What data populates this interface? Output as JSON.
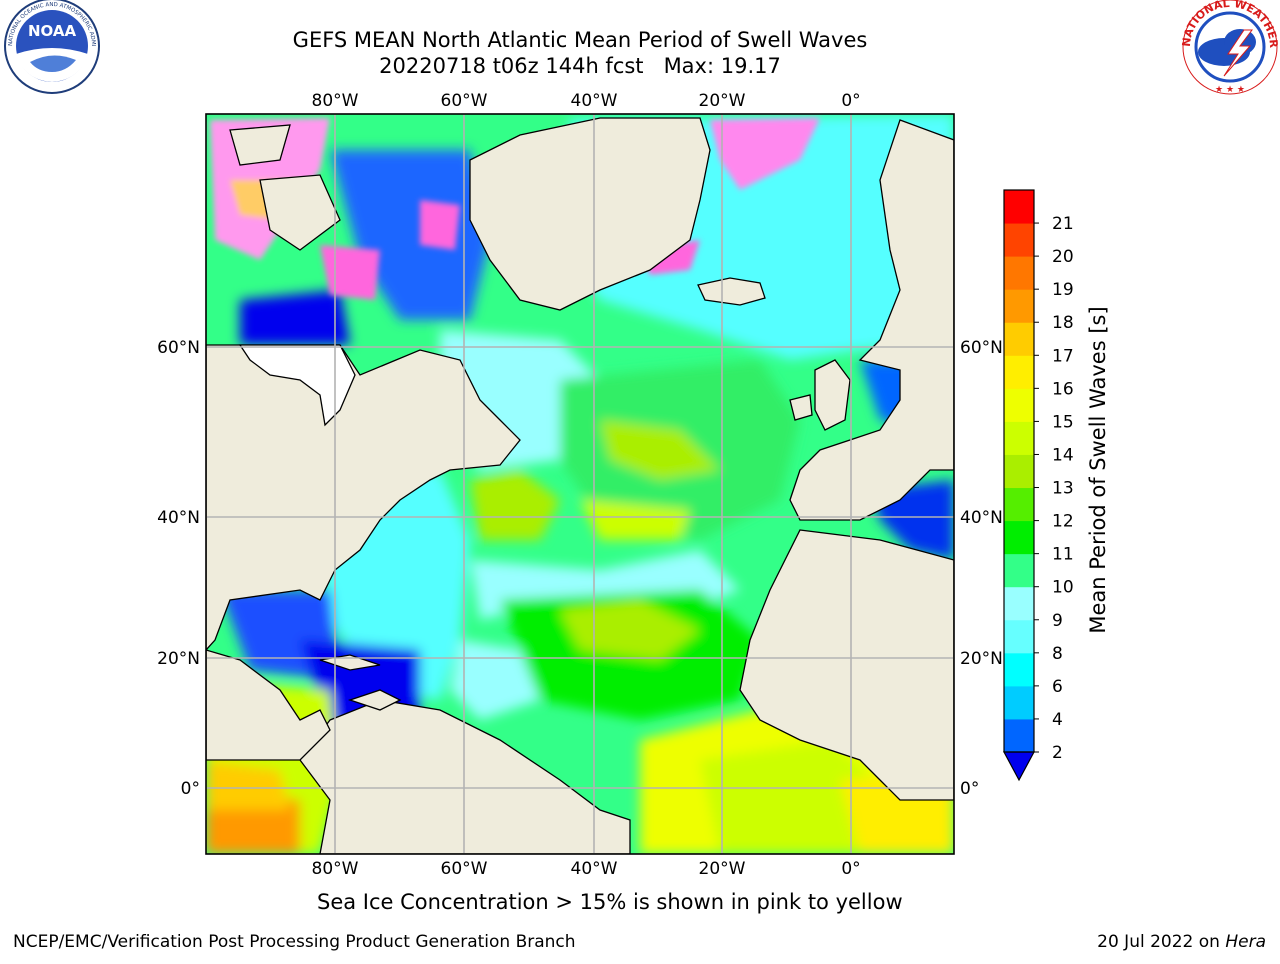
{
  "header": {
    "title": "GEFS MEAN North Atlantic Mean Period of Swell Waves",
    "subtitle": "20220718 t06z 144h fcst   Max: 19.17"
  },
  "logos": {
    "left": "NOAA",
    "left_ring_text": "NATIONAL OCEANIC AND ATMOSPHERIC ADMINISTRATION · U.S. DEPARTMENT OF COMMERCE",
    "right_ring_text": "NATIONAL WEATHER SERVICE"
  },
  "map": {
    "lon_labels": [
      "80°W",
      "60°W",
      "40°W",
      "20°W",
      "0°"
    ],
    "lat_labels": [
      "60°N",
      "40°N",
      "20°N",
      "0°"
    ],
    "land_color": "#efecdc",
    "gridline_color": "#b3b3b3"
  },
  "colorbar": {
    "label": "Mean Period of Swell Waves [s]",
    "ticks": [
      "2",
      "4",
      "6",
      "8",
      "9",
      "10",
      "11",
      "12",
      "13",
      "14",
      "15",
      "16",
      "17",
      "18",
      "19",
      "20",
      "21"
    ],
    "colors": [
      "#0066ff",
      "#00ccff",
      "#00ffff",
      "#66ffff",
      "#99ffff",
      "#33ff88",
      "#00ee00",
      "#55ee00",
      "#aaee00",
      "#ccff00",
      "#eeff00",
      "#ffee00",
      "#ffcc00",
      "#ff9900",
      "#ff7700",
      "#ff4400",
      "#ff0000"
    ],
    "under_color": "#0000ee"
  },
  "caption": "Sea Ice Concentration > 15% is shown in pink to yellow",
  "footer": {
    "left": "NCEP/EMC/Verification Post Processing Product Generation Branch",
    "date": "20 Jul 2022 on ",
    "host": "Hera"
  }
}
